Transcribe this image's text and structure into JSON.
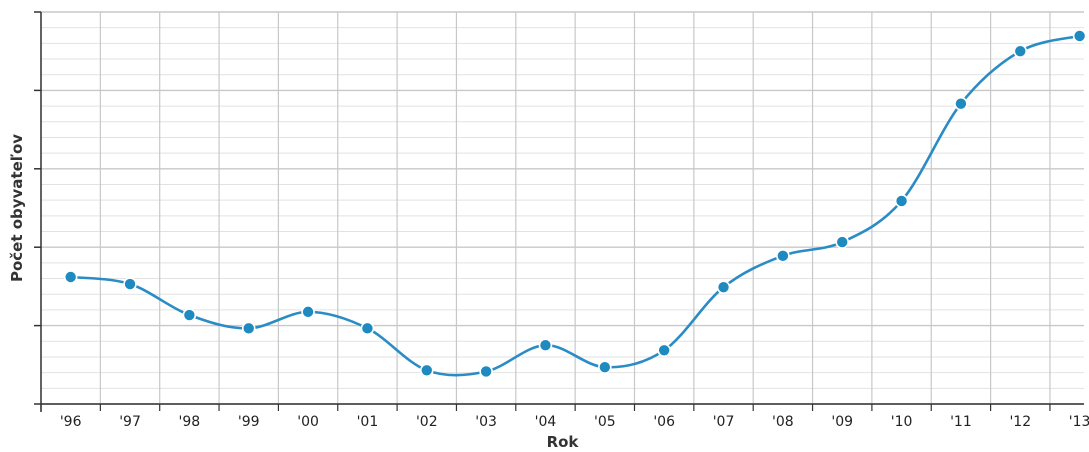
{
  "chart_data": {
    "type": "line",
    "title": "",
    "xlabel": "Rok",
    "ylabel": "Počet obyvateľov",
    "categories": [
      "'96",
      "'97",
      "'98",
      "'99",
      "'00",
      "'01",
      "'02",
      "'03",
      "'04",
      "'05",
      "'06",
      "'07",
      "'08",
      "'09",
      "'10",
      "'11",
      "'12",
      "'13"
    ],
    "series": [
      {
        "values": [
          32.4,
          30.6,
          22.7,
          19.3,
          23.5,
          19.3,
          8.6,
          8.3,
          15.0,
          9.4,
          13.7,
          29.8,
          37.8,
          41.3,
          51.8,
          76.6,
          90.0,
          93.9
        ]
      }
    ],
    "ylim": [
      0,
      100
    ],
    "grid": true,
    "smooth": true,
    "colors": {
      "line": "#2a8cc4",
      "marker": "#1f8ac0",
      "marker_stroke": "#ffffff",
      "grid_major": "#c8c8c8",
      "grid_minor": "#e2e2e2",
      "axis": "#333333"
    }
  }
}
